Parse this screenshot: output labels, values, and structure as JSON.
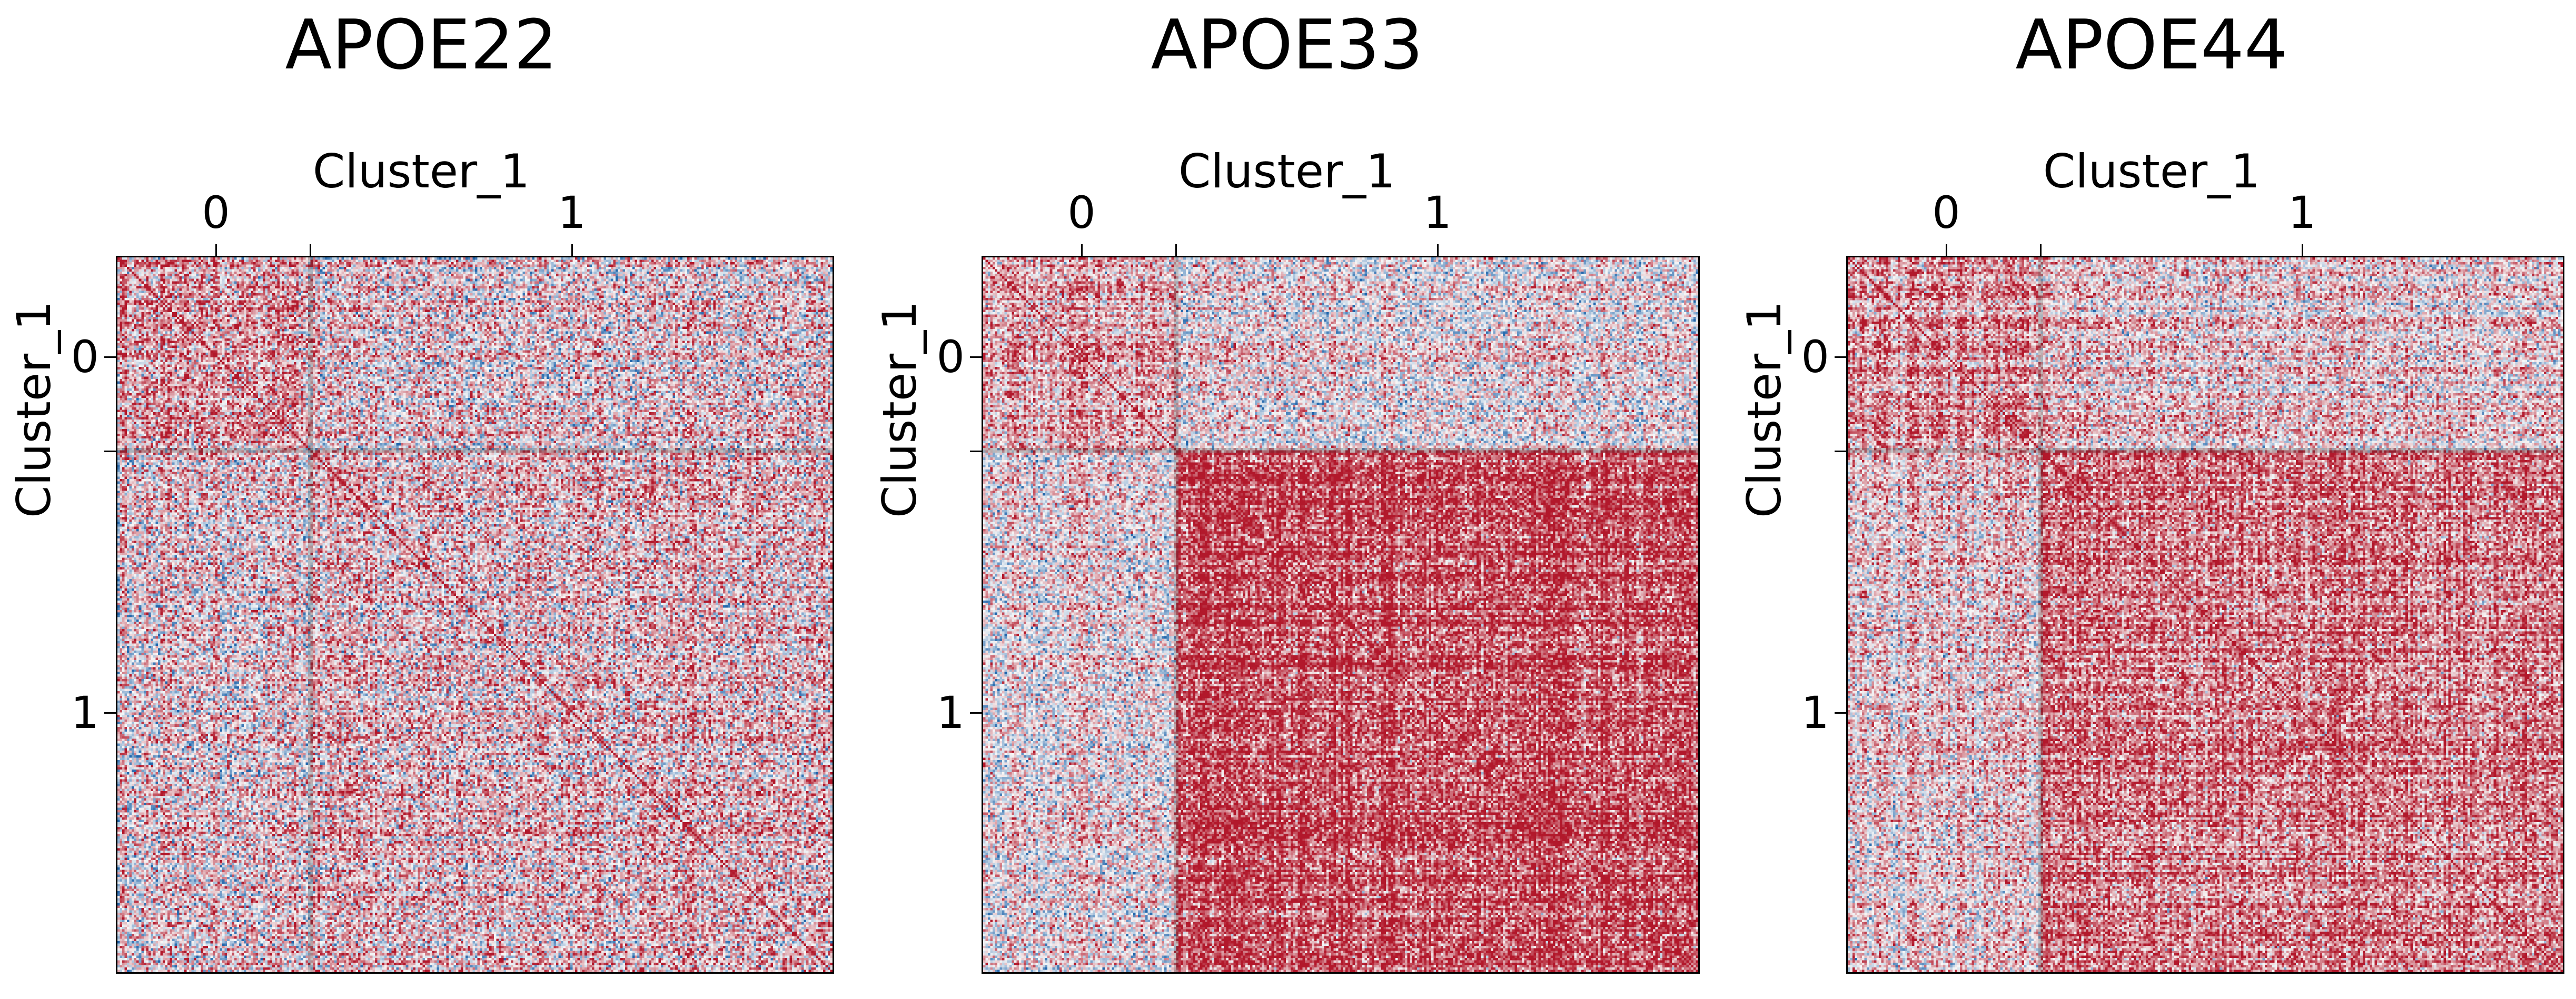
{
  "chart_data": [
    {
      "type": "heatmap",
      "title": "APOE22",
      "xlabel": "Cluster_1",
      "ylabel": "Cluster_1",
      "x_ticks": [
        "0",
        "1"
      ],
      "y_ticks": [
        "0",
        "1"
      ],
      "clusters": [
        {
          "label": "0",
          "fraction": 0.27
        },
        {
          "label": "1",
          "fraction": 0.73
        }
      ],
      "colormap": "RdBu_r",
      "colors": {
        "low": "#2166ac",
        "mid": "#f7f7f7",
        "high": "#b2182b"
      },
      "block_mean_correlation": [
        [
          0.35,
          0.1
        ],
        [
          0.1,
          0.2
        ]
      ],
      "within_block_variation": 0.55
    },
    {
      "type": "heatmap",
      "title": "APOE33",
      "xlabel": "Cluster_1",
      "ylabel": "Cluster_1",
      "x_ticks": [
        "0",
        "1"
      ],
      "y_ticks": [
        "0",
        "1"
      ],
      "clusters": [
        {
          "label": "0",
          "fraction": 0.27
        },
        {
          "label": "1",
          "fraction": 0.73
        }
      ],
      "colormap": "RdBu_r",
      "colors": {
        "low": "#2166ac",
        "mid": "#f7f7f7",
        "high": "#b2182b"
      },
      "block_mean_correlation": [
        [
          0.35,
          0.05
        ],
        [
          0.05,
          0.75
        ]
      ],
      "within_block_variation": 0.45
    },
    {
      "type": "heatmap",
      "title": "APOE44",
      "xlabel": "Cluster_1",
      "ylabel": "Cluster_1",
      "x_ticks": [
        "0",
        "1"
      ],
      "y_ticks": [
        "0",
        "1"
      ],
      "clusters": [
        {
          "label": "0",
          "fraction": 0.27
        },
        {
          "label": "1",
          "fraction": 0.73
        }
      ],
      "colormap": "RdBu_r",
      "colors": {
        "low": "#2166ac",
        "mid": "#f7f7f7",
        "high": "#b2182b"
      },
      "block_mean_correlation": [
        [
          0.4,
          0.15
        ],
        [
          0.15,
          0.55
        ]
      ],
      "within_block_variation": 0.45
    }
  ]
}
